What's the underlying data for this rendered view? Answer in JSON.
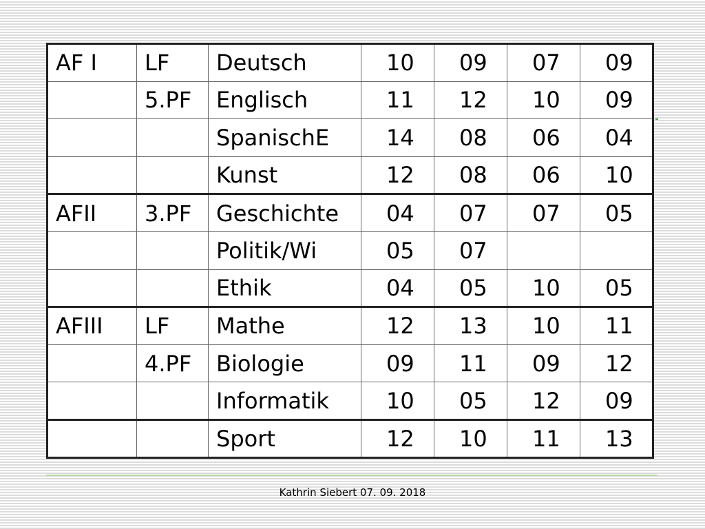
{
  "table": {
    "rows": [
      [
        "AF I",
        "LF",
        "Deutsch",
        "10",
        "09",
        "07",
        "09"
      ],
      [
        "",
        "5.PF",
        "Englisch",
        "11",
        "12",
        "10",
        "09"
      ],
      [
        "",
        "",
        "SpanischE",
        "14",
        "08",
        "06",
        "04"
      ],
      [
        "",
        "",
        "Kunst",
        "12",
        "08",
        "06",
        "10"
      ],
      [
        "AFII",
        "3.PF",
        "Geschichte",
        "04",
        "07",
        "07",
        "05"
      ],
      [
        "",
        "",
        "Politik/Wi",
        "05",
        "07",
        "",
        ""
      ],
      [
        "",
        "",
        "Ethik",
        "04",
        "05",
        "10",
        "05"
      ],
      [
        "AFIII",
        "LF",
        "Mathe",
        "12",
        "13",
        "10",
        "11"
      ],
      [
        "",
        "4.PF",
        "Biologie",
        "09",
        "11",
        "09",
        "12"
      ],
      [
        "",
        "",
        "Informatik",
        "10",
        "05",
        "12",
        "09"
      ],
      [
        "",
        "",
        "Sport",
        "12",
        "10",
        "11",
        "13"
      ]
    ]
  },
  "footer": {
    "text": "Kathrin Siebert  07. 09. 2018"
  },
  "colors": {
    "accent_line": "#b5d9a8",
    "border": "#222222"
  }
}
